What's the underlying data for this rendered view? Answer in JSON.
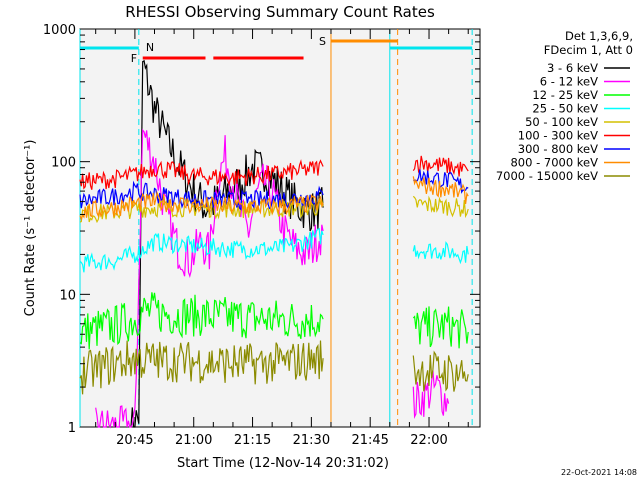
{
  "chart_data": {
    "type": "line",
    "title": "RHESSI Observing Summary Count Rates",
    "xlabel": "Start Time (12-Nov-14 20:31:02)",
    "ylabel": "Count Rate (s⁻¹ detector⁻¹)",
    "yscale": "log",
    "ylim": [
      1,
      1000
    ],
    "xlim": [
      "20:31",
      "22:13"
    ],
    "y_ticks": [
      "1",
      "10",
      "100",
      "1000"
    ],
    "x_ticks": [
      "20:45",
      "21:00",
      "21:15",
      "21:30",
      "21:45",
      "22:00"
    ],
    "grid": false,
    "legend_header": [
      "Det 1,3,6,9,",
      "FDecim 1, Att 0"
    ],
    "legend_position": "right",
    "footer": "22-Oct-2021 14:08",
    "markers": [
      {
        "label": "N",
        "color": "#00e5ee"
      },
      {
        "label": "F",
        "color": "#ff0000"
      },
      {
        "label": "S",
        "color": "#ff8c00"
      }
    ],
    "flags": {
      "night": [
        [
          "20:31",
          "20:46"
        ],
        [
          "21:50",
          "22:11"
        ]
      ],
      "flare": [
        [
          "20:47",
          "21:03"
        ],
        [
          "21:05",
          "21:28"
        ]
      ],
      "saa": [
        [
          "21:35",
          "21:52"
        ]
      ]
    },
    "series": [
      {
        "name": "3 - 6 keV",
        "color": "#000000",
        "x": [
          "20:44",
          "20:46",
          "20:47",
          "20:48",
          "20:50",
          "20:53",
          "20:56",
          "21:00",
          "21:03",
          "21:06",
          "21:09",
          "21:12",
          "21:15",
          "21:18",
          "21:21",
          "21:24",
          "21:27",
          "21:30",
          "21:33"
        ],
        "y": [
          1.0,
          1.2,
          550,
          420,
          250,
          150,
          95,
          60,
          45,
          50,
          60,
          70,
          90,
          85,
          70,
          55,
          45,
          42,
          45
        ]
      },
      {
        "name": "6 - 12 keV",
        "color": "#ff00ff",
        "x": [
          "20:35",
          "20:45",
          "20:47",
          "20:50",
          "20:53",
          "20:56",
          "20:59",
          "21:02",
          "21:04",
          "21:06",
          "21:08",
          "21:10",
          "21:12",
          "21:14",
          "21:16",
          "21:18",
          "21:20",
          "21:23",
          "21:26",
          "21:29",
          "21:33",
          "21:56",
          "22:02",
          "22:05"
        ],
        "y": [
          1.0,
          1.0,
          170,
          100,
          40,
          22,
          18,
          25,
          20,
          70,
          110,
          70,
          40,
          30,
          55,
          70,
          60,
          30,
          22,
          20,
          30,
          1.5,
          2.0,
          1.5
        ]
      },
      {
        "name": "12 - 25 keV",
        "color": "#00ff00",
        "x": [
          "20:31",
          "20:40",
          "20:45",
          "20:47",
          "20:55",
          "21:05",
          "21:15",
          "21:25",
          "21:33",
          "21:56",
          "22:05",
          "22:10"
        ],
        "y": [
          5.2,
          5.8,
          6.5,
          7.5,
          7.0,
          6.8,
          6.6,
          6.4,
          6.5,
          5.5,
          5.8,
          5.2
        ]
      },
      {
        "name": "25 - 50 keV",
        "color": "#00ffff",
        "x": [
          "20:31",
          "20:40",
          "20:45",
          "20:50",
          "20:55",
          "21:00",
          "21:10",
          "21:20",
          "21:25",
          "21:30",
          "21:33",
          "21:56",
          "22:05",
          "22:10"
        ],
        "y": [
          17,
          18,
          20,
          25,
          24,
          23,
          22,
          22,
          23,
          26,
          28,
          22,
          21,
          20
        ]
      },
      {
        "name": "50 - 100 keV",
        "color": "#d4c000",
        "x": [
          "20:31",
          "20:40",
          "20:45",
          "20:50",
          "21:00",
          "21:10",
          "21:20",
          "21:30",
          "21:33",
          "21:56",
          "22:05",
          "22:10"
        ],
        "y": [
          40,
          42,
          44,
          45,
          45,
          44,
          44,
          45,
          46,
          48,
          46,
          44
        ]
      },
      {
        "name": "100 - 300 keV",
        "color": "#ff0000",
        "x": [
          "20:31",
          "20:40",
          "20:45",
          "20:50",
          "20:55",
          "21:00",
          "21:10",
          "21:20",
          "21:30",
          "21:33",
          "21:56",
          "22:05",
          "22:10"
        ],
        "y": [
          70,
          74,
          80,
          90,
          85,
          78,
          76,
          80,
          88,
          92,
          100,
          92,
          85
        ]
      },
      {
        "name": "300 - 800 keV",
        "color": "#0000ff",
        "x": [
          "20:31",
          "20:40",
          "20:45",
          "20:50",
          "21:00",
          "21:10",
          "21:20",
          "21:30",
          "21:33",
          "21:56",
          "22:05",
          "22:10"
        ],
        "y": [
          50,
          55,
          60,
          57,
          52,
          51,
          52,
          54,
          56,
          80,
          72,
          63
        ]
      },
      {
        "name": "800 - 7000 keV",
        "color": "#ff8c00",
        "x": [
          "20:31",
          "20:40",
          "20:45",
          "20:50",
          "21:00",
          "21:10",
          "21:20",
          "21:30",
          "21:33",
          "21:56",
          "22:05",
          "22:10"
        ],
        "y": [
          42,
          45,
          48,
          50,
          47,
          46,
          46,
          48,
          49,
          68,
          62,
          55
        ]
      },
      {
        "name": "7000 - 15000 keV",
        "color": "#8b8b00",
        "x": [
          "20:31",
          "20:40",
          "20:45",
          "20:47",
          "21:00",
          "21:10",
          "21:20",
          "21:30",
          "21:33",
          "21:56",
          "22:05",
          "22:10"
        ],
        "y": [
          2.5,
          3.0,
          3.3,
          3.2,
          3.1,
          3.0,
          3.0,
          3.2,
          3.3,
          2.7,
          2.6,
          2.5
        ]
      }
    ]
  }
}
